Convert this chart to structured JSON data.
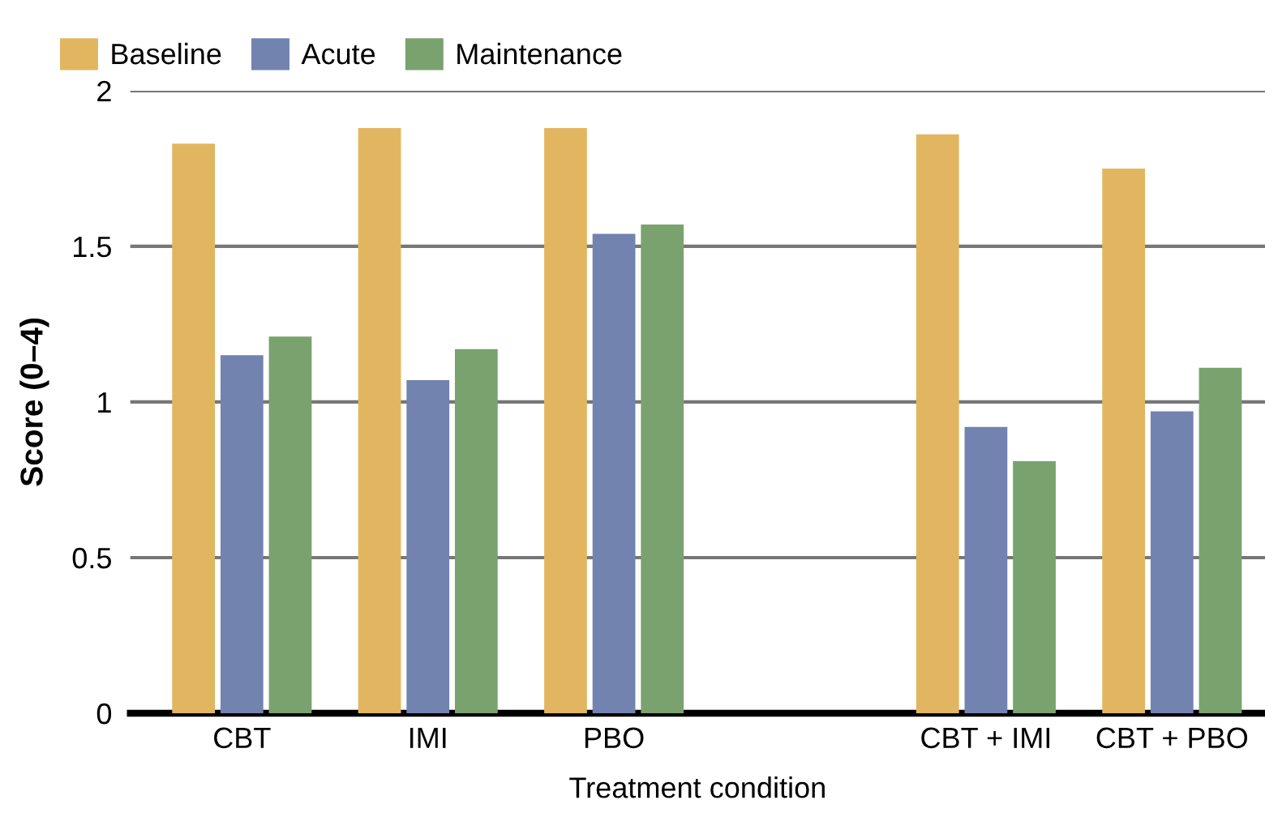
{
  "chart_data": {
    "type": "bar",
    "xlabel": "Treatment condition",
    "ylabel": "Score (0–4)",
    "categories": [
      "CBT",
      "IMI",
      "PBO",
      null,
      "CBT + IMI",
      "CBT + PBO"
    ],
    "series": [
      {
        "name": "Baseline",
        "color": "#e2b660",
        "values": [
          1.83,
          1.88,
          1.88,
          null,
          1.86,
          1.75
        ]
      },
      {
        "name": "Acute",
        "color": "#7283b0",
        "values": [
          1.15,
          1.07,
          1.54,
          null,
          0.92,
          0.97
        ]
      },
      {
        "name": "Maintenance",
        "color": "#79a26f",
        "values": [
          1.21,
          1.17,
          1.57,
          null,
          0.81,
          1.11
        ]
      }
    ],
    "ylim": [
      0,
      2
    ],
    "yticks": [
      0,
      0.5,
      1,
      1.5,
      2
    ],
    "grid": "y",
    "legend": "top left"
  }
}
